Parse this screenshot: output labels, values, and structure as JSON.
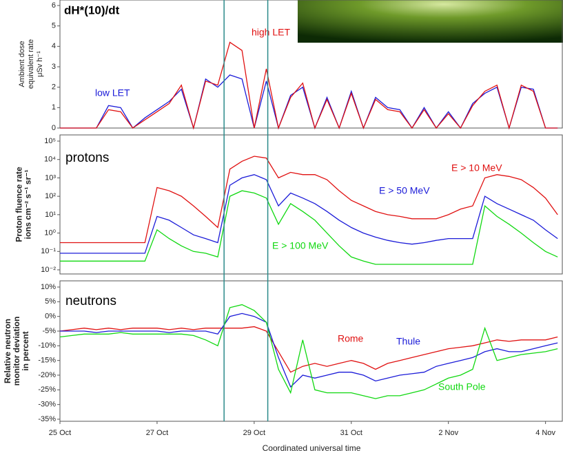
{
  "chart_data": [
    {
      "type": "line",
      "title": "dH*(10)/dt",
      "ylabel": [
        "Ambient dose",
        "equivalent rate",
        "μSv h⁻¹"
      ],
      "x": [
        25,
        25.25,
        25.5,
        25.75,
        26,
        26.25,
        26.5,
        26.75,
        27,
        27.25,
        27.5,
        27.75,
        28,
        28.25,
        28.5,
        28.75,
        29,
        29.25,
        29.5,
        29.75,
        30,
        30.25,
        30.5,
        30.75,
        31,
        31.25,
        31.5,
        31.75,
        32,
        32.25,
        32.5,
        32.75,
        33,
        33.25,
        33.5,
        33.75,
        34,
        34.25,
        34.5,
        34.75,
        35,
        35.25
      ],
      "xlim": [
        25,
        35.36
      ],
      "ylim": [
        0,
        6
      ],
      "yticks": [
        0,
        1,
        2,
        3,
        4,
        5,
        6
      ],
      "log": false,
      "vlines": [
        28.38,
        29.28
      ],
      "series": [
        {
          "name": "low LET",
          "color": "#1a1ad8",
          "values": [
            0,
            0,
            0,
            0,
            1.1,
            1.0,
            0,
            0.5,
            0.9,
            1.3,
            1.9,
            0,
            2.4,
            2.0,
            2.6,
            2.4,
            0,
            2.3,
            0,
            1.6,
            2.0,
            0,
            1.5,
            0,
            1.8,
            0,
            1.5,
            1.0,
            0.9,
            0,
            1.0,
            0,
            0.8,
            0,
            1.2,
            1.7,
            2.0,
            0,
            2.0,
            1.9,
            0,
            0
          ]
        },
        {
          "name": "high LET",
          "color": "#e01010",
          "values": [
            0,
            0,
            0,
            0,
            0.9,
            0.8,
            0,
            0.4,
            0.8,
            1.2,
            2.1,
            0,
            2.3,
            2.1,
            4.2,
            3.8,
            0,
            2.9,
            0,
            1.5,
            2.2,
            0,
            1.4,
            0,
            1.7,
            0,
            1.4,
            0.9,
            0.8,
            0,
            0.9,
            0,
            0.7,
            0,
            1.1,
            1.8,
            2.1,
            0,
            2.1,
            1.8,
            0,
            0
          ]
        }
      ]
    },
    {
      "type": "line",
      "title": "protons",
      "ylabel": [
        "Proton fluence rate",
        "ions cm⁻² s⁻¹ sr⁻¹"
      ],
      "x": [
        25,
        25.25,
        25.5,
        25.75,
        26,
        26.25,
        26.5,
        26.75,
        27,
        27.25,
        27.5,
        27.75,
        28,
        28.25,
        28.5,
        28.75,
        29,
        29.25,
        29.5,
        29.75,
        30,
        30.25,
        30.5,
        30.75,
        31,
        31.25,
        31.5,
        31.75,
        32,
        32.25,
        32.5,
        32.75,
        33,
        33.25,
        33.5,
        33.75,
        34,
        34.25,
        34.5,
        34.75,
        35,
        35.25
      ],
      "xlim": [
        25,
        35.36
      ],
      "ylim": [
        0.01,
        100000
      ],
      "log": true,
      "yticks": [
        {
          "value": 100000,
          "label": "10⁵"
        },
        {
          "value": 10000,
          "label": "10⁴"
        },
        {
          "value": 1000,
          "label": "10³"
        },
        {
          "value": 100,
          "label": "10²"
        },
        {
          "value": 10,
          "label": "10¹"
        },
        {
          "value": 1,
          "label": "10⁰"
        },
        {
          "value": 0.1,
          "label": "10⁻¹"
        },
        {
          "value": 0.01,
          "label": "10⁻²"
        }
      ],
      "series": [
        {
          "name": "E > 10 MeV",
          "color": "#e01010",
          "values": [
            0.3,
            0.3,
            0.3,
            0.3,
            0.3,
            0.3,
            0.3,
            0.3,
            300,
            200,
            100,
            30,
            8,
            2,
            3000,
            8000,
            15000,
            12000,
            1000,
            2000,
            1500,
            1500,
            800,
            200,
            60,
            30,
            15,
            10,
            8,
            6,
            6,
            6,
            10,
            20,
            30,
            1000,
            1500,
            1200,
            800,
            300,
            80,
            10
          ]
        },
        {
          "name": "E > 50 MeV",
          "color": "#1a1ad8",
          "values": [
            0.08,
            0.08,
            0.08,
            0.08,
            0.08,
            0.08,
            0.08,
            0.08,
            8,
            5,
            2,
            0.8,
            0.5,
            0.3,
            400,
            1000,
            1500,
            800,
            30,
            150,
            80,
            40,
            15,
            5,
            2,
            1,
            0.6,
            0.4,
            0.3,
            0.25,
            0.3,
            0.4,
            0.5,
            0.5,
            0.5,
            100,
            40,
            20,
            10,
            5,
            1.5,
            0.5
          ]
        },
        {
          "name": "E > 100 MeV",
          "color": "#10d810",
          "values": [
            0.03,
            0.03,
            0.03,
            0.03,
            0.03,
            0.03,
            0.03,
            0.03,
            1.5,
            0.5,
            0.2,
            0.1,
            0.08,
            0.05,
            100,
            200,
            150,
            80,
            3,
            40,
            15,
            5,
            1,
            0.2,
            0.05,
            0.03,
            0.02,
            0.02,
            0.02,
            0.02,
            0.02,
            0.02,
            0.02,
            0.02,
            0.02,
            30,
            8,
            3,
            1,
            0.3,
            0.1,
            0.05
          ]
        }
      ]
    },
    {
      "type": "line",
      "title": "neutrons",
      "ylabel": [
        "Relative neutron",
        "monitor deviation",
        "in percent"
      ],
      "x": [
        25,
        25.25,
        25.5,
        25.75,
        26,
        26.25,
        26.5,
        26.75,
        27,
        27.25,
        27.5,
        27.75,
        28,
        28.25,
        28.5,
        28.75,
        29,
        29.25,
        29.5,
        29.75,
        30,
        30.25,
        30.5,
        30.75,
        31,
        31.25,
        31.5,
        31.75,
        32,
        32.25,
        32.5,
        32.75,
        33,
        33.25,
        33.5,
        33.75,
        34,
        34.25,
        34.5,
        34.75,
        35,
        35.25
      ],
      "xlim": [
        25,
        35.36
      ],
      "ylim": [
        -35,
        10
      ],
      "log": false,
      "xlabel": "Coordinated universal time",
      "xticks": [
        {
          "value": 25,
          "label": "25 Oct"
        },
        {
          "value": 27,
          "label": "27 Oct"
        },
        {
          "value": 29,
          "label": "29 Oct"
        },
        {
          "value": 31,
          "label": "31 Oct"
        },
        {
          "value": 33,
          "label": "2 Nov"
        },
        {
          "value": 35,
          "label": "4 Nov"
        }
      ],
      "yticks": [
        {
          "value": 10,
          "label": "10%"
        },
        {
          "value": 5,
          "label": "5%"
        },
        {
          "value": 0,
          "label": "0%"
        },
        {
          "value": -5,
          "label": "-5%"
        },
        {
          "value": -10,
          "label": "-10%"
        },
        {
          "value": -15,
          "label": "-15%"
        },
        {
          "value": -20,
          "label": "-20%"
        },
        {
          "value": -25,
          "label": "-25%"
        },
        {
          "value": -30,
          "label": "-30%"
        },
        {
          "value": -35,
          "label": "-35%"
        }
      ],
      "series": [
        {
          "name": "Rome",
          "color": "#e01010",
          "values": [
            -5,
            -4.5,
            -4,
            -4.5,
            -4,
            -4.5,
            -4,
            -4,
            -4,
            -4.5,
            -4,
            -4.5,
            -4,
            -4,
            -4,
            -4,
            -3.5,
            -5,
            -12,
            -19,
            -17,
            -16,
            -17,
            -16,
            -15,
            -16,
            -18,
            -16,
            -15,
            -14,
            -13,
            -12,
            -11,
            -10.5,
            -10,
            -9,
            -8,
            -8.5,
            -8,
            -8,
            -8,
            -7
          ]
        },
        {
          "name": "Thule",
          "color": "#1a1ad8",
          "values": [
            -5,
            -5,
            -5,
            -5.5,
            -5,
            -5,
            -5,
            -5,
            -5,
            -5.5,
            -5,
            -5,
            -5,
            -6,
            0,
            1,
            0,
            -2,
            -14,
            -24,
            -20,
            -21,
            -20,
            -19,
            -19,
            -20,
            -22,
            -21,
            -20,
            -19.5,
            -19,
            -17,
            -16,
            -15,
            -14,
            -12,
            -11,
            -12,
            -12,
            -11,
            -10,
            -9
          ]
        },
        {
          "name": "South Pole",
          "color": "#10d810",
          "values": [
            -7,
            -6.5,
            -6,
            -6,
            -6,
            -5.5,
            -6,
            -6,
            -6,
            -6,
            -6,
            -6.5,
            -8,
            -10,
            3,
            4,
            2,
            -2,
            -18,
            -26,
            -8,
            -25,
            -26,
            -26,
            -26,
            -27,
            -28,
            -27,
            -27,
            -26,
            -25,
            -23,
            -21,
            -20,
            -18,
            -4,
            -15,
            -14,
            -13,
            -12.5,
            -12,
            -11
          ]
        }
      ]
    }
  ]
}
